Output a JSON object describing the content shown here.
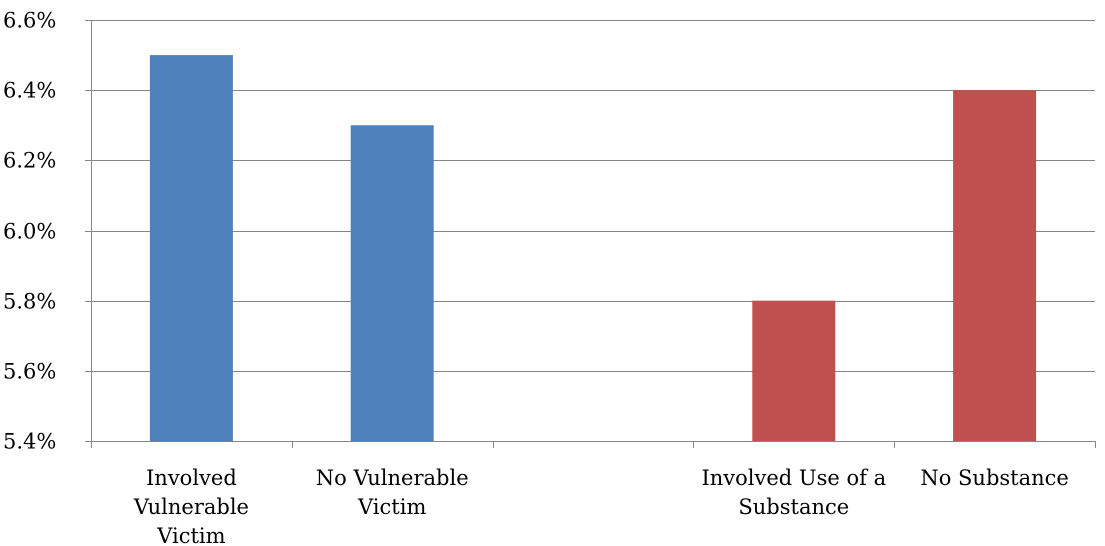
{
  "chart_data": {
    "type": "bar",
    "categories": [
      [
        "Involved",
        "Vulnerable",
        "Victim"
      ],
      [
        "No Vulnerable",
        "Victim"
      ],
      [],
      [
        "Involved Use of a",
        "Substance"
      ],
      [
        "No Substance"
      ]
    ],
    "series": [
      {
        "color": "#4F81BD",
        "values": [
          6.5,
          6.3,
          null,
          null,
          null
        ]
      },
      {
        "color": "#C0504D",
        "values": [
          null,
          null,
          null,
          5.8,
          6.4
        ]
      }
    ],
    "y_ticks": [
      "5.4%",
      "5.6%",
      "5.8%",
      "6.0%",
      "6.2%",
      "6.4%",
      "6.6%"
    ],
    "ylim": [
      5.4,
      6.6
    ],
    "grid": true,
    "legend": "none"
  }
}
